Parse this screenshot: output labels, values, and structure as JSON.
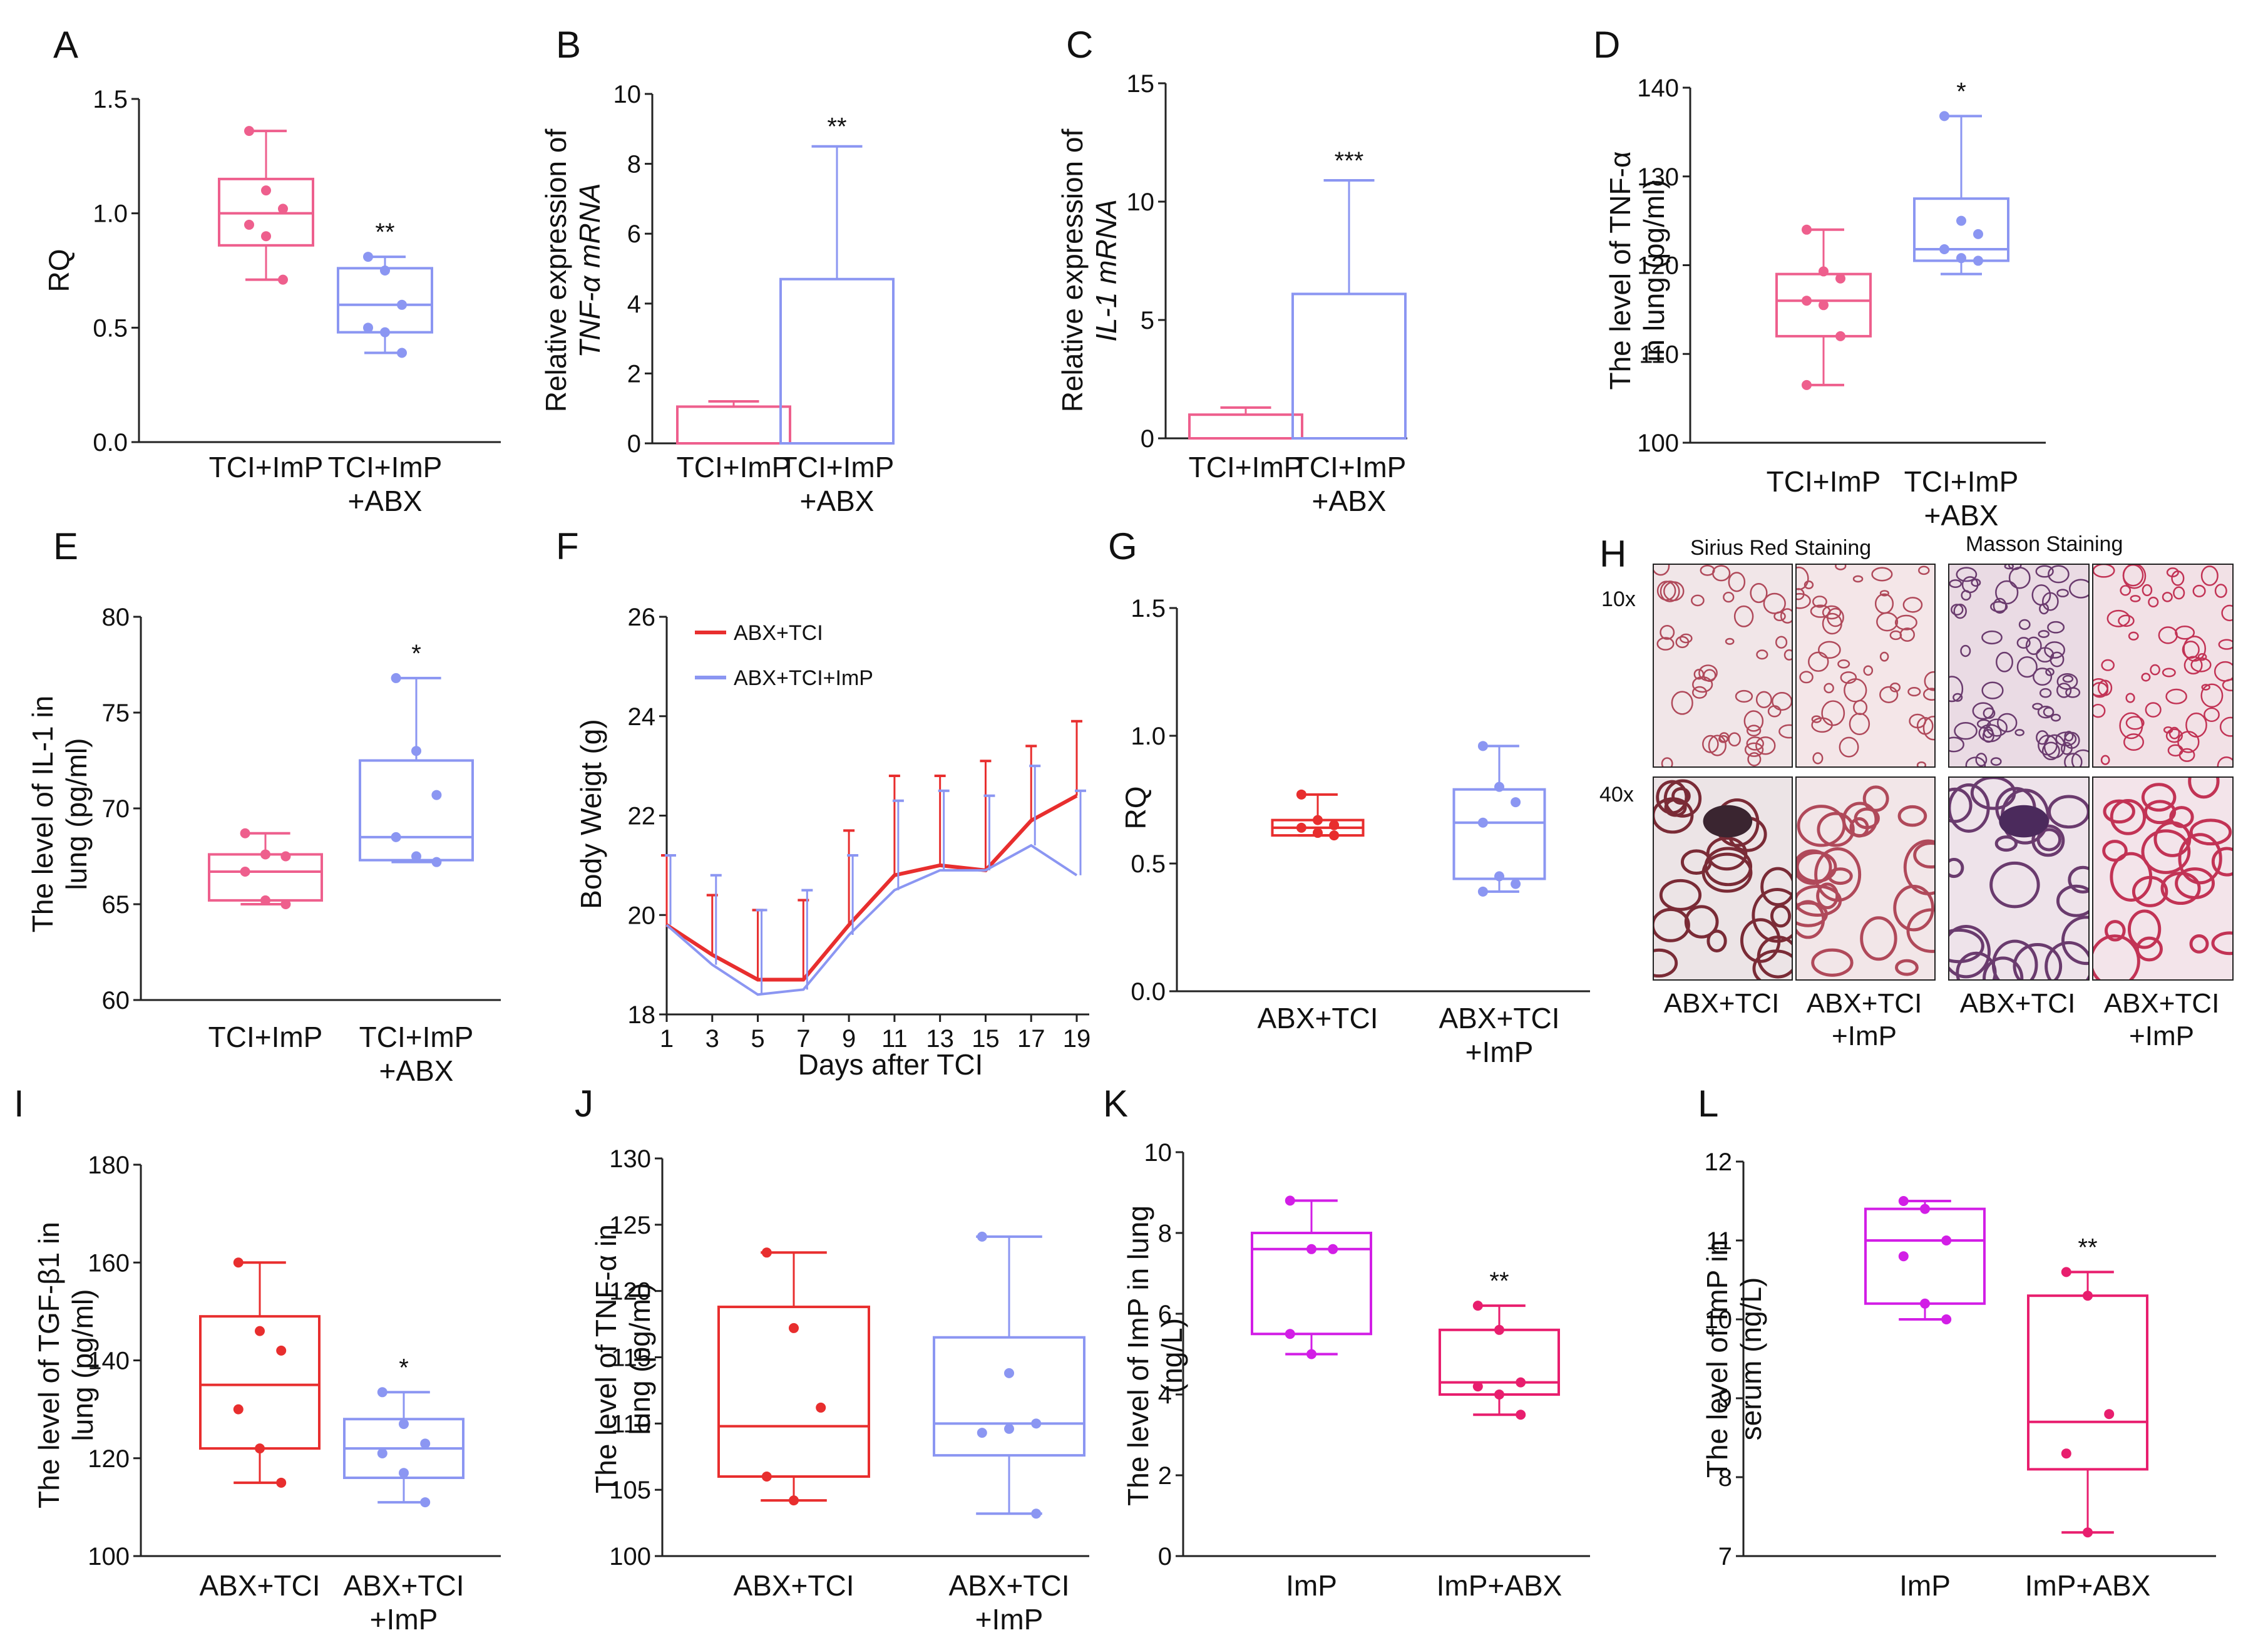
{
  "colors": {
    "pink": "#ee5f8d",
    "periwinkle": "#8b96f2",
    "red": "#e82e2e",
    "magenta": "#d21ee6",
    "crimson": "#e81e6e",
    "axis": "#222222"
  },
  "histology": {
    "label": "H",
    "sirius_title": "Sirius Red Staining",
    "masson_title": "Masson Staining",
    "mag_10x": "10x",
    "mag_40x": "40x",
    "col1_label": "ABX+TCI",
    "col2_label_1": "ABX+TCI",
    "col2_label_2": "+ImP",
    "col3_label": "ABX+TCI",
    "col4_label_1": "ABX+TCI",
    "col4_label_2": "+ImP"
  },
  "chart_data": [
    {
      "id": "A",
      "label": "A",
      "type": "box",
      "ylabel": [
        "RQ"
      ],
      "ylim": [
        0,
        1.5
      ],
      "yticks": [
        "0.0",
        "0.5",
        "1.0",
        "1.5"
      ],
      "categories": [
        [
          "TCI+ImP"
        ],
        [
          "TCI+ImP",
          "+ABX"
        ]
      ],
      "colors": [
        "pink",
        "periwinkle"
      ],
      "series": [
        {
          "name": "TCI+ImP",
          "min": 0.71,
          "q1": 0.86,
          "median": 1.0,
          "q3": 1.15,
          "max": 1.36,
          "points": [
            1.36,
            1.1,
            1.02,
            0.95,
            0.9,
            0.71
          ],
          "annotation": ""
        },
        {
          "name": "TCI+ImP +ABX",
          "min": 0.39,
          "q1": 0.48,
          "median": 0.6,
          "q3": 0.76,
          "max": 0.81,
          "points": [
            0.81,
            0.75,
            0.6,
            0.5,
            0.48,
            0.39
          ],
          "annotation": "**"
        }
      ]
    },
    {
      "id": "B",
      "label": "B",
      "type": "bar",
      "ylabel": [
        "Relative expression of",
        "TNF-α mRNA"
      ],
      "ylim": [
        0,
        10
      ],
      "yticks": [
        "0",
        "2",
        "4",
        "6",
        "8",
        "10"
      ],
      "categories": [
        [
          "TCI+ImP"
        ],
        [
          "TCI+ImP",
          "+ABX"
        ]
      ],
      "colors": [
        "pink",
        "periwinkle"
      ],
      "series": [
        {
          "name": "TCI+ImP",
          "value": 1.05,
          "error": 0.15,
          "annotation": ""
        },
        {
          "name": "TCI+ImP +ABX",
          "value": 4.7,
          "error": 3.8,
          "annotation": "**"
        }
      ]
    },
    {
      "id": "C",
      "label": "C",
      "type": "bar",
      "ylabel": [
        "Relative expression of",
        "IL-1 mRNA"
      ],
      "ylim": [
        0,
        15
      ],
      "yticks": [
        "0",
        "5",
        "10",
        "15"
      ],
      "categories": [
        [
          "TCI+ImP"
        ],
        [
          "TCI+ImP",
          "+ABX"
        ]
      ],
      "colors": [
        "pink",
        "periwinkle"
      ],
      "series": [
        {
          "name": "TCI+ImP",
          "value": 1.0,
          "error": 0.3,
          "annotation": ""
        },
        {
          "name": "TCI+ImP +ABX",
          "value": 6.1,
          "error": 4.8,
          "annotation": "***"
        }
      ]
    },
    {
      "id": "D",
      "label": "D",
      "type": "box",
      "ylabel": [
        "The level of TNF-α",
        "in lung (pg/ml)"
      ],
      "ylim": [
        100,
        140
      ],
      "yticks": [
        "100",
        "110",
        "120",
        "130",
        "140"
      ],
      "categories": [
        [
          "TCI+ImP"
        ],
        [
          "TCI+ImP",
          "+ABX"
        ]
      ],
      "colors": [
        "pink",
        "periwinkle"
      ],
      "series": [
        {
          "name": "TCI+ImP",
          "min": 106.5,
          "q1": 112,
          "median": 116,
          "q3": 119,
          "max": 124,
          "points": [
            124,
            119.3,
            118.5,
            116,
            115.5,
            112,
            106.5
          ],
          "annotation": ""
        },
        {
          "name": "TCI+ImP +ABX",
          "min": 119,
          "q1": 120.5,
          "median": 121.8,
          "q3": 127.5,
          "max": 136.8,
          "points": [
            136.8,
            125,
            123.5,
            121.8,
            120.8,
            120.5
          ],
          "annotation": "*"
        }
      ]
    },
    {
      "id": "E",
      "label": "E",
      "type": "box",
      "ylabel": [
        "The level of IL-1 in",
        "lung (pg/ml)"
      ],
      "ylim": [
        60,
        80
      ],
      "yticks": [
        "60",
        "65",
        "70",
        "75",
        "80"
      ],
      "categories": [
        [
          "TCI+ImP"
        ],
        [
          "TCI+ImP",
          "+ABX"
        ]
      ],
      "colors": [
        "pink",
        "periwinkle"
      ],
      "series": [
        {
          "name": "TCI+ImP",
          "min": 65,
          "q1": 65.2,
          "median": 66.7,
          "q3": 67.6,
          "max": 68.7,
          "points": [
            68.7,
            67.6,
            67.5,
            66.7,
            65.2,
            65
          ],
          "annotation": ""
        },
        {
          "name": "TCI+ImP +ABX",
          "min": 67.2,
          "q1": 67.3,
          "median": 68.5,
          "q3": 72.5,
          "max": 76.8,
          "points": [
            76.8,
            73,
            70.7,
            68.5,
            67.5,
            67.2
          ],
          "annotation": "*"
        }
      ]
    },
    {
      "id": "F",
      "label": "F",
      "type": "line",
      "xlabel": "Days after TCI",
      "ylabel": [
        "Body Weigt (g)"
      ],
      "x": [
        1,
        3,
        5,
        7,
        9,
        11,
        13,
        15,
        17,
        19
      ],
      "xticks": [
        "1",
        "3",
        "5",
        "7",
        "9",
        "11",
        "13",
        "15",
        "17",
        "19"
      ],
      "ylim": [
        18,
        26
      ],
      "yticks": [
        "18",
        "20",
        "22",
        "24",
        "26"
      ],
      "series": [
        {
          "name": "ABX+TCI",
          "color": "red",
          "values": [
            19.8,
            19.2,
            18.7,
            18.7,
            19.8,
            20.8,
            21.0,
            20.9,
            21.9,
            22.4
          ],
          "upper": [
            21.2,
            20.4,
            20.1,
            20.3,
            21.7,
            22.8,
            22.8,
            23.1,
            23.4,
            23.9
          ]
        },
        {
          "name": "ABX+TCI+ImP",
          "color": "periwinkle",
          "values": [
            19.8,
            19.0,
            18.4,
            18.5,
            19.6,
            20.5,
            20.9,
            20.9,
            21.4,
            20.8
          ],
          "upper": [
            21.2,
            20.8,
            20.1,
            20.5,
            21.2,
            22.3,
            22.5,
            22.4,
            23.0,
            22.5
          ]
        }
      ]
    },
    {
      "id": "G",
      "label": "G",
      "type": "box",
      "ylabel": [
        "RQ"
      ],
      "ylim": [
        0,
        1.5
      ],
      "yticks": [
        "0.0",
        "0.5",
        "1.0",
        "1.5"
      ],
      "categories": [
        [
          "ABX+TCI"
        ],
        [
          "ABX+TCI",
          "+ImP"
        ]
      ],
      "colors": [
        "red",
        "periwinkle"
      ],
      "series": [
        {
          "name": "ABX+TCI",
          "min": 0.61,
          "q1": 0.61,
          "median": 0.64,
          "q3": 0.67,
          "max": 0.77,
          "points": [
            0.77,
            0.67,
            0.65,
            0.64,
            0.62,
            0.61
          ],
          "annotation": ""
        },
        {
          "name": "ABX+TCI +ImP",
          "min": 0.39,
          "q1": 0.44,
          "median": 0.66,
          "q3": 0.79,
          "max": 0.96,
          "points": [
            0.96,
            0.8,
            0.74,
            0.66,
            0.45,
            0.42,
            0.39
          ],
          "annotation": ""
        }
      ]
    },
    {
      "id": "I",
      "label": "I",
      "type": "box",
      "ylabel": [
        "The level of TGF-β1 in",
        "lung (pg/ml)"
      ],
      "ylim": [
        100,
        180
      ],
      "yticks": [
        "100",
        "120",
        "140",
        "160",
        "180"
      ],
      "categories": [
        [
          "ABX+TCI"
        ],
        [
          "ABX+TCI",
          "+ImP"
        ]
      ],
      "colors": [
        "red",
        "periwinkle"
      ],
      "series": [
        {
          "name": "ABX+TCI",
          "min": 115,
          "q1": 122,
          "median": 135,
          "q3": 149,
          "max": 160,
          "points": [
            160,
            146,
            142,
            130,
            122,
            115
          ],
          "annotation": ""
        },
        {
          "name": "ABX+TCI +ImP",
          "min": 111,
          "q1": 116,
          "median": 122,
          "q3": 128,
          "max": 133.5,
          "points": [
            133.5,
            127,
            123,
            121,
            117,
            111
          ],
          "annotation": "*"
        }
      ]
    },
    {
      "id": "J",
      "label": "J",
      "type": "box",
      "ylabel": [
        "The level of TNF-α in",
        "lung (pg/ml)"
      ],
      "ylim": [
        100,
        130
      ],
      "yticks": [
        "100",
        "105",
        "110",
        "115",
        "120",
        "125",
        "130"
      ],
      "categories": [
        [
          "ABX+TCI"
        ],
        [
          "ABX+TCI",
          "+ImP"
        ]
      ],
      "colors": [
        "red",
        "periwinkle"
      ],
      "series": [
        {
          "name": "ABX+TCI",
          "min": 104.2,
          "q1": 106,
          "median": 109.8,
          "q3": 118.8,
          "max": 122.9,
          "points": [
            122.9,
            117.2,
            111.2,
            106,
            104.2
          ],
          "annotation": ""
        },
        {
          "name": "ABX+TCI +ImP",
          "min": 103.2,
          "q1": 107.6,
          "median": 110,
          "q3": 116.5,
          "max": 124.1,
          "points": [
            124.1,
            113.8,
            110,
            109.3,
            109.6,
            103.2
          ],
          "annotation": ""
        }
      ]
    },
    {
      "id": "K",
      "label": "K",
      "type": "box",
      "ylabel": [
        "The level of ImP in lung",
        "(ng/L)"
      ],
      "ylim": [
        0,
        10
      ],
      "yticks": [
        "0",
        "2",
        "4",
        "6",
        "8",
        "10"
      ],
      "categories": [
        [
          "ImP"
        ],
        [
          "ImP+ABX"
        ]
      ],
      "colors": [
        "magenta",
        "crimson"
      ],
      "series": [
        {
          "name": "ImP",
          "min": 5.0,
          "q1": 5.5,
          "median": 7.6,
          "q3": 8.0,
          "max": 8.8,
          "points": [
            8.8,
            7.6,
            7.6,
            5.5,
            5.0
          ],
          "annotation": ""
        },
        {
          "name": "ImP+ABX",
          "min": 3.5,
          "q1": 4.0,
          "median": 4.3,
          "q3": 5.6,
          "max": 6.2,
          "points": [
            6.2,
            5.6,
            4.3,
            4.2,
            4.0,
            3.5
          ],
          "annotation": "**"
        }
      ]
    },
    {
      "id": "L",
      "label": "L",
      "type": "box",
      "ylabel": [
        "The level of ImP in",
        "serum (ng/L)"
      ],
      "ylim": [
        7,
        12
      ],
      "yticks": [
        "7",
        "8",
        "9",
        "10",
        "11",
        "12"
      ],
      "categories": [
        [
          "ImP"
        ],
        [
          "ImP+ABX"
        ]
      ],
      "colors": [
        "magenta",
        "crimson"
      ],
      "series": [
        {
          "name": "ImP",
          "min": 10.0,
          "q1": 10.2,
          "median": 11.0,
          "q3": 11.4,
          "max": 11.5,
          "points": [
            11.5,
            11.4,
            11.0,
            10.8,
            10.2,
            10.0
          ],
          "annotation": ""
        },
        {
          "name": "ImP+ABX",
          "min": 7.3,
          "q1": 8.1,
          "median": 8.7,
          "q3": 10.3,
          "max": 10.6,
          "points": [
            10.6,
            10.3,
            8.8,
            8.3,
            7.3
          ],
          "annotation": "**"
        }
      ]
    }
  ]
}
